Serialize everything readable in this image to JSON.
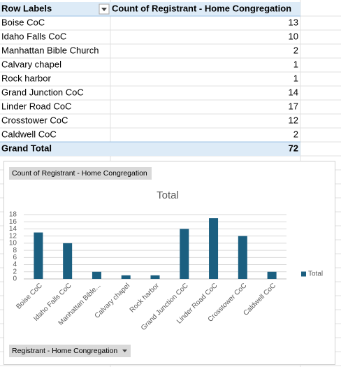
{
  "table": {
    "header": [
      "Row Labels",
      "Count of Registrant - Home Congregation"
    ],
    "rows": [
      [
        "Boise CoC",
        13
      ],
      [
        "Idaho Falls CoC",
        10
      ],
      [
        "Manhattan Bible Church",
        2
      ],
      [
        "Calvary chapel",
        1
      ],
      [
        "Rock harbor",
        1
      ],
      [
        "Grand Junction CoC",
        14
      ],
      [
        "Linder Road CoC",
        17
      ],
      [
        "Crosstower CoC",
        12
      ],
      [
        "Caldwell CoC",
        2
      ]
    ],
    "total": [
      "Grand Total",
      72
    ]
  },
  "chart_data": {
    "type": "bar",
    "value_button": "Count of Registrant - Home Congregation",
    "title": "Total",
    "categories": [
      "Boise CoC",
      "Idaho Falls CoC",
      "Manhattan Bible...",
      "Calvary chapel",
      "Rock harbor",
      "Grand Junction CoC",
      "Linder Road CoC",
      "Crosstower CoC",
      "Caldwell CoC"
    ],
    "series": [
      {
        "name": "Total",
        "color": "#1b5f80",
        "values": [
          13,
          10,
          2,
          1,
          1,
          14,
          17,
          12,
          2
        ]
      }
    ],
    "ylim": [
      0,
      18
    ],
    "yticks": [
      0,
      2,
      4,
      6,
      8,
      10,
      12,
      14,
      16,
      18
    ],
    "grid": true,
    "legend": "right",
    "axis_button": "Registrant - Home Congregation"
  }
}
